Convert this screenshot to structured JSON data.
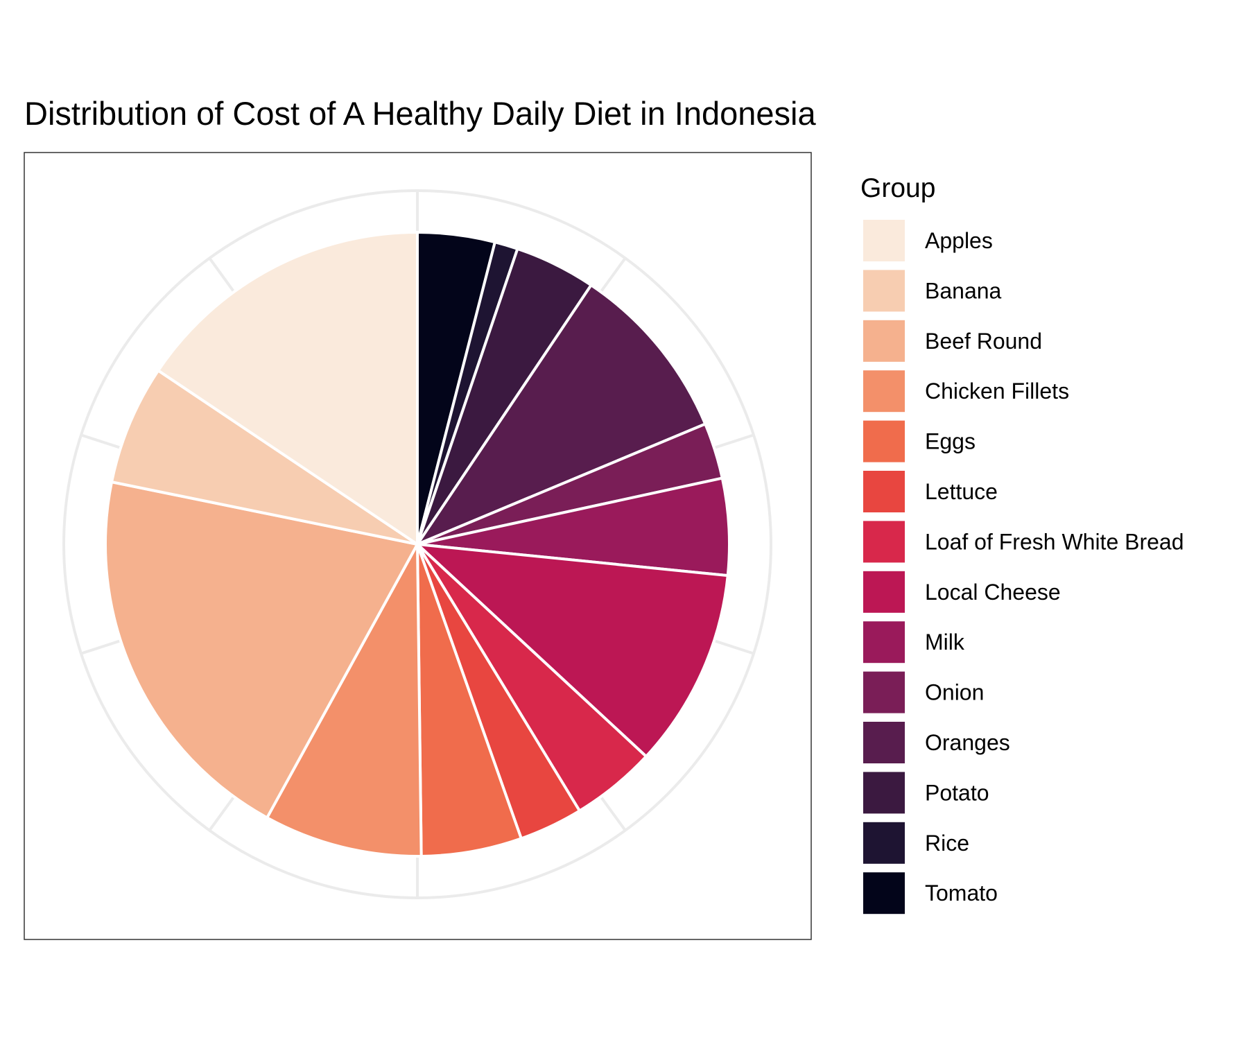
{
  "chart_data": {
    "type": "pie",
    "title": "Distribution of Cost of A Healthy Daily Diet in Indonesia",
    "legend_title": "Group",
    "legend_position": "right",
    "grid": true,
    "start": "top",
    "direction": "clockwise",
    "slices": [
      {
        "label": "Tomato",
        "value": 4.0,
        "color": "#03051A"
      },
      {
        "label": "Rice",
        "value": 1.2,
        "color": "#1E1432"
      },
      {
        "label": "Potato",
        "value": 4.2,
        "color": "#3B1940"
      },
      {
        "label": "Oranges",
        "value": 9.3,
        "color": "#581D4E"
      },
      {
        "label": "Onion",
        "value": 2.9,
        "color": "#7A1E57"
      },
      {
        "label": "Milk",
        "value": 5.0,
        "color": "#9A1A5B"
      },
      {
        "label": "Local Cheese",
        "value": 10.3,
        "color": "#BC1754"
      },
      {
        "label": "Loaf of Fresh White Bread",
        "value": 4.4,
        "color": "#D8284B"
      },
      {
        "label": "Lettuce",
        "value": 3.3,
        "color": "#E84640"
      },
      {
        "label": "Eggs",
        "value": 5.2,
        "color": "#F06C4C"
      },
      {
        "label": "Chicken Fillets",
        "value": 8.2,
        "color": "#F3906A"
      },
      {
        "label": "Beef Round",
        "value": 20.2,
        "color": "#F5B18E"
      },
      {
        "label": "Banana",
        "value": 6.2,
        "color": "#F7CDB1"
      },
      {
        "label": "Apples",
        "value": 15.6,
        "color": "#FAEADC"
      }
    ]
  }
}
